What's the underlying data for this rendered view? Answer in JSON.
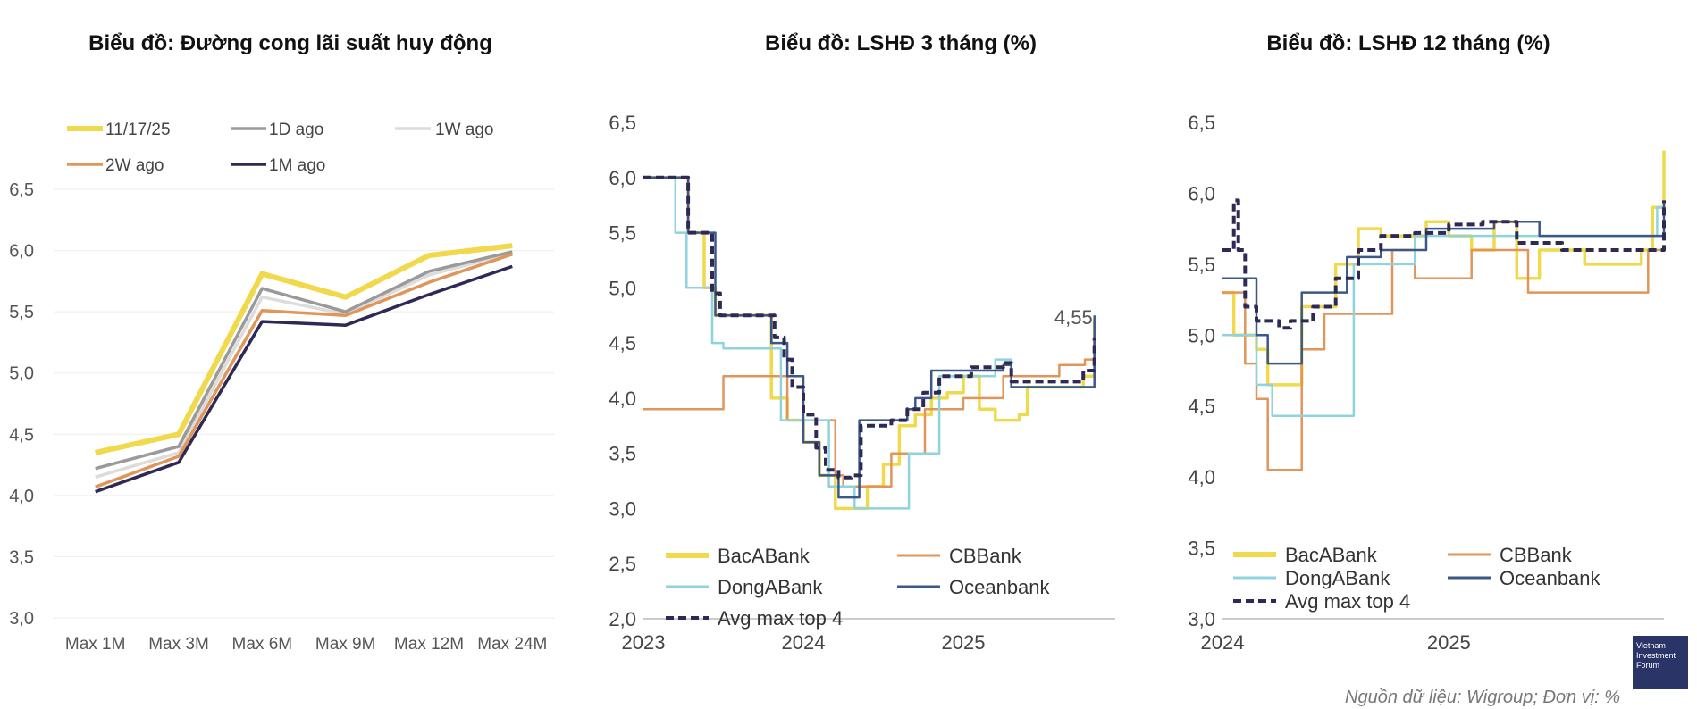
{
  "charts": {
    "c1": {
      "type": "line",
      "title": "Biểu đồ: Đường cong lãi suất huy động",
      "categories": [
        "Max 1M",
        "Max 3M",
        "Max 6M",
        "Max 9M",
        "Max 12M",
        "Max 24M"
      ],
      "yticks": [
        "3,0",
        "3,5",
        "4,0",
        "4,5",
        "5,0",
        "5,5",
        "6,0",
        "6,5"
      ],
      "ylim": [
        3.0,
        6.5
      ],
      "series": [
        {
          "name": "11/17/25",
          "color": "#f0d94c",
          "values": [
            4.35,
            4.5,
            5.81,
            5.62,
            5.96,
            6.04
          ]
        },
        {
          "name": "1D ago",
          "color": "#9a9a9a",
          "values": [
            4.22,
            4.4,
            5.69,
            5.5,
            5.83,
            5.99
          ]
        },
        {
          "name": "1W ago",
          "color": "#dcdcdc",
          "values": [
            4.15,
            4.35,
            5.62,
            5.48,
            5.8,
            5.98
          ]
        },
        {
          "name": "2W ago",
          "color": "#e0955a",
          "values": [
            4.07,
            4.32,
            5.51,
            5.47,
            5.74,
            5.97
          ]
        },
        {
          "name": "1M ago",
          "color": "#2e2a55",
          "values": [
            4.03,
            4.27,
            5.42,
            5.39,
            5.64,
            5.87
          ]
        }
      ]
    },
    "c2": {
      "type": "line",
      "title": "Biểu đồ: LSHĐ 3 tháng (%)",
      "xticks": [
        "2023",
        "2024",
        "2025"
      ],
      "yticks": [
        "2,0",
        "2,5",
        "3,0",
        "3,5",
        "4,0",
        "4,5",
        "5,0",
        "5,5",
        "6,0",
        "6,5"
      ],
      "ylim": [
        2.0,
        6.5
      ],
      "annotation": "4,55",
      "series": [
        {
          "name": "BacABank",
          "color": "#f0d94c",
          "points": [
            [
              2023.0,
              6.0
            ],
            [
              2023.24,
              6.0
            ],
            [
              2023.28,
              5.5
            ],
            [
              2023.38,
              5.0
            ],
            [
              2023.45,
              4.75
            ],
            [
              2023.7,
              4.75
            ],
            [
              2023.8,
              4.0
            ],
            [
              2023.9,
              3.8
            ],
            [
              2024.0,
              3.6
            ],
            [
              2024.1,
              3.3
            ],
            [
              2024.2,
              3.0
            ],
            [
              2024.35,
              3.0
            ],
            [
              2024.4,
              3.2
            ],
            [
              2024.5,
              3.4
            ],
            [
              2024.6,
              3.75
            ],
            [
              2024.7,
              3.85
            ],
            [
              2024.8,
              4.0
            ],
            [
              2024.9,
              4.05
            ],
            [
              2025.0,
              4.2
            ],
            [
              2025.1,
              3.9
            ],
            [
              2025.2,
              3.8
            ],
            [
              2025.35,
              3.85
            ],
            [
              2025.4,
              4.1
            ],
            [
              2025.6,
              4.1
            ],
            [
              2025.75,
              4.2
            ],
            [
              2025.82,
              4.7
            ]
          ]
        },
        {
          "name": "CBBank",
          "color": "#e0955a",
          "points": [
            [
              2023.0,
              3.9
            ],
            [
              2023.46,
              3.9
            ],
            [
              2023.5,
              4.2
            ],
            [
              2023.86,
              4.2
            ],
            [
              2023.9,
              3.8
            ],
            [
              2024.0,
              3.8
            ],
            [
              2024.2,
              3.3
            ],
            [
              2024.25,
              3.2
            ],
            [
              2024.5,
              3.2
            ],
            [
              2024.55,
              3.5
            ],
            [
              2024.72,
              3.5
            ],
            [
              2024.76,
              3.9
            ],
            [
              2025.0,
              4.0
            ],
            [
              2025.25,
              4.2
            ],
            [
              2025.5,
              4.2
            ],
            [
              2025.6,
              4.3
            ],
            [
              2025.76,
              4.35
            ],
            [
              2025.82,
              4.35
            ]
          ]
        },
        {
          "name": "DongABank",
          "color": "#8fd3df",
          "points": [
            [
              2023.0,
              6.0
            ],
            [
              2023.18,
              6.0
            ],
            [
              2023.2,
              5.5
            ],
            [
              2023.27,
              5.0
            ],
            [
              2023.4,
              5.0
            ],
            [
              2023.43,
              4.5
            ],
            [
              2023.5,
              4.45
            ],
            [
              2023.82,
              4.45
            ],
            [
              2023.86,
              3.8
            ],
            [
              2024.1,
              3.8
            ],
            [
              2024.16,
              3.2
            ],
            [
              2024.32,
              3.0
            ],
            [
              2024.63,
              3.0
            ],
            [
              2024.66,
              3.5
            ],
            [
              2024.8,
              3.5
            ],
            [
              2024.85,
              4.2
            ],
            [
              2025.2,
              4.35
            ],
            [
              2025.3,
              4.1
            ],
            [
              2025.82,
              4.1
            ]
          ]
        },
        {
          "name": "Oceanbank",
          "color": "#3b5888",
          "points": [
            [
              2023.0,
              6.0
            ],
            [
              2023.25,
              6.0
            ],
            [
              2023.28,
              5.5
            ],
            [
              2023.4,
              5.5
            ],
            [
              2023.45,
              4.75
            ],
            [
              2023.75,
              4.75
            ],
            [
              2023.8,
              4.5
            ],
            [
              2023.9,
              4.2
            ],
            [
              2024.0,
              3.6
            ],
            [
              2024.1,
              3.3
            ],
            [
              2024.18,
              3.3
            ],
            [
              2024.22,
              3.1
            ],
            [
              2024.3,
              3.1
            ],
            [
              2024.35,
              3.8
            ],
            [
              2024.5,
              3.8
            ],
            [
              2024.65,
              3.9
            ],
            [
              2024.7,
              4.0
            ],
            [
              2024.8,
              4.25
            ],
            [
              2025.0,
              4.25
            ],
            [
              2025.25,
              4.3
            ],
            [
              2025.3,
              4.1
            ],
            [
              2025.8,
              4.1
            ],
            [
              2025.82,
              4.75
            ]
          ]
        },
        {
          "name": "Avg max top 4",
          "color": "#2e2a55",
          "dashed": true,
          "points": [
            [
              2023.0,
              6.0
            ],
            [
              2023.24,
              6.0
            ],
            [
              2023.28,
              5.5
            ],
            [
              2023.38,
              5.5
            ],
            [
              2023.43,
              4.95
            ],
            [
              2023.48,
              4.75
            ],
            [
              2023.72,
              4.75
            ],
            [
              2023.82,
              4.55
            ],
            [
              2023.88,
              4.35
            ],
            [
              2023.93,
              4.1
            ],
            [
              2024.0,
              3.85
            ],
            [
              2024.08,
              3.55
            ],
            [
              2024.14,
              3.35
            ],
            [
              2024.22,
              3.28
            ],
            [
              2024.3,
              3.3
            ],
            [
              2024.36,
              3.75
            ],
            [
              2024.55,
              3.8
            ],
            [
              2024.65,
              3.9
            ],
            [
              2024.75,
              4.05
            ],
            [
              2024.85,
              4.2
            ],
            [
              2025.05,
              4.28
            ],
            [
              2025.25,
              4.32
            ],
            [
              2025.3,
              4.15
            ],
            [
              2025.6,
              4.15
            ],
            [
              2025.75,
              4.25
            ],
            [
              2025.82,
              4.55
            ]
          ]
        }
      ]
    },
    "c3": {
      "type": "line",
      "title": "Biểu đồ: LSHĐ 12 tháng (%)",
      "xticks": [
        "2024",
        "2025"
      ],
      "yticks": [
        "3,0",
        "3,5",
        "4,0",
        "4,5",
        "5,0",
        "5,5",
        "6,0",
        "6,5"
      ],
      "ylim": [
        3.0,
        6.5
      ],
      "series": [
        {
          "name": "BacABank",
          "color": "#f0d94c",
          "points": [
            [
              2024.0,
              5.3
            ],
            [
              2024.05,
              5.0
            ],
            [
              2024.15,
              4.9
            ],
            [
              2024.2,
              4.65
            ],
            [
              2024.28,
              4.65
            ],
            [
              2024.35,
              5.2
            ],
            [
              2024.5,
              5.5
            ],
            [
              2024.6,
              5.75
            ],
            [
              2024.7,
              5.7
            ],
            [
              2024.9,
              5.8
            ],
            [
              2025.0,
              5.7
            ],
            [
              2025.1,
              5.6
            ],
            [
              2025.2,
              5.8
            ],
            [
              2025.3,
              5.4
            ],
            [
              2025.4,
              5.6
            ],
            [
              2025.6,
              5.5
            ],
            [
              2025.85,
              5.6
            ],
            [
              2025.9,
              5.9
            ],
            [
              2025.95,
              6.3
            ]
          ]
        },
        {
          "name": "CBBank",
          "color": "#e0955a",
          "points": [
            [
              2024.0,
              5.3
            ],
            [
              2024.1,
              4.8
            ],
            [
              2024.15,
              4.55
            ],
            [
              2024.2,
              4.05
            ],
            [
              2024.3,
              4.05
            ],
            [
              2024.35,
              4.9
            ],
            [
              2024.45,
              5.15
            ],
            [
              2024.65,
              5.15
            ],
            [
              2024.75,
              5.6
            ],
            [
              2024.85,
              5.4
            ],
            [
              2025.0,
              5.4
            ],
            [
              2025.1,
              5.6
            ],
            [
              2025.2,
              5.6
            ],
            [
              2025.35,
              5.3
            ],
            [
              2025.85,
              5.3
            ],
            [
              2025.88,
              5.6
            ],
            [
              2025.95,
              5.6
            ]
          ]
        },
        {
          "name": "DongABank",
          "color": "#8fd3df",
          "points": [
            [
              2024.0,
              5.0
            ],
            [
              2024.1,
              5.0
            ],
            [
              2024.15,
              4.65
            ],
            [
              2024.22,
              4.43
            ],
            [
              2024.55,
              4.43
            ],
            [
              2024.58,
              5.5
            ],
            [
              2024.8,
              5.5
            ],
            [
              2024.85,
              5.7
            ],
            [
              2025.2,
              5.7
            ],
            [
              2025.85,
              5.7
            ],
            [
              2025.92,
              5.9
            ],
            [
              2025.95,
              5.9
            ]
          ]
        },
        {
          "name": "Oceanbank",
          "color": "#3b5888",
          "points": [
            [
              2024.0,
              5.4
            ],
            [
              2024.1,
              5.4
            ],
            [
              2024.15,
              5.0
            ],
            [
              2024.2,
              4.8
            ],
            [
              2024.3,
              4.8
            ],
            [
              2024.35,
              5.3
            ],
            [
              2024.45,
              5.3
            ],
            [
              2024.55,
              5.55
            ],
            [
              2024.7,
              5.6
            ],
            [
              2024.9,
              5.75
            ],
            [
              2025.0,
              5.75
            ],
            [
              2025.2,
              5.8
            ],
            [
              2025.4,
              5.7
            ],
            [
              2025.85,
              5.7
            ],
            [
              2025.95,
              5.95
            ]
          ]
        },
        {
          "name": "Avg max top 4",
          "color": "#2e2a55",
          "dashed": true,
          "points": [
            [
              2024.0,
              5.6
            ],
            [
              2024.04,
              5.6
            ],
            [
              2024.05,
              5.95
            ],
            [
              2024.07,
              5.6
            ],
            [
              2024.1,
              5.2
            ],
            [
              2024.15,
              5.1
            ],
            [
              2024.25,
              5.05
            ],
            [
              2024.3,
              5.1
            ],
            [
              2024.4,
              5.2
            ],
            [
              2024.5,
              5.4
            ],
            [
              2024.6,
              5.6
            ],
            [
              2024.7,
              5.7
            ],
            [
              2024.85,
              5.72
            ],
            [
              2025.0,
              5.78
            ],
            [
              2025.15,
              5.8
            ],
            [
              2025.3,
              5.65
            ],
            [
              2025.5,
              5.6
            ],
            [
              2025.85,
              5.6
            ],
            [
              2025.95,
              5.95
            ]
          ]
        }
      ]
    }
  },
  "footer": "Nguồn dữ liệu: Wigroup; Đơn vị: %",
  "logo": {
    "line1": "Vietnam",
    "line2": "Investment",
    "line3": "Forum"
  }
}
